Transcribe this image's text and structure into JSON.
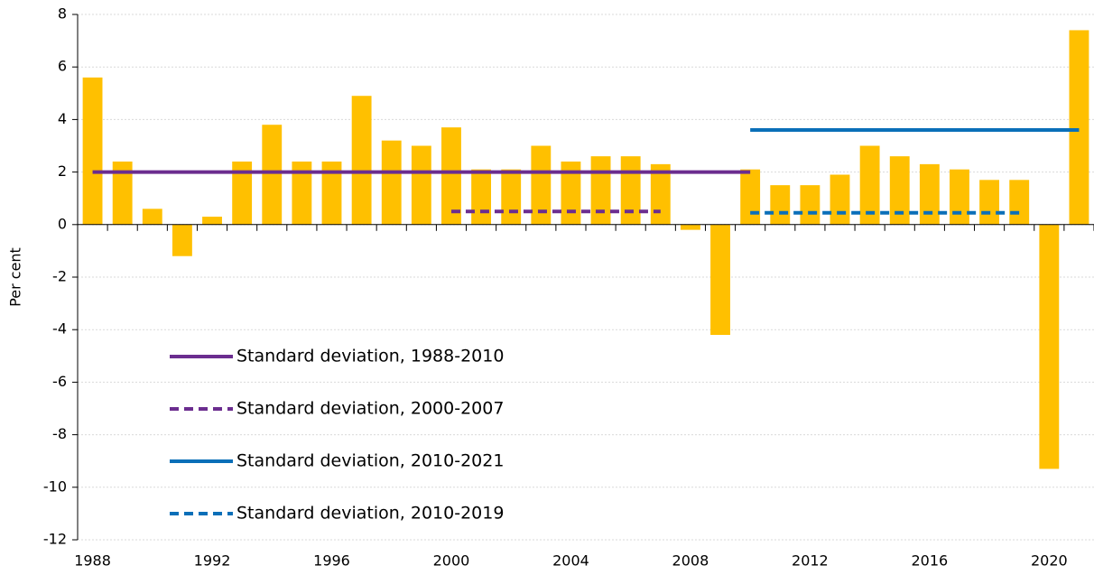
{
  "chart_data": {
    "type": "bar",
    "y_label": "Per cent",
    "categories": [
      "1988",
      null,
      null,
      null,
      "1992",
      null,
      null,
      null,
      "1996",
      null,
      null,
      null,
      "2000",
      null,
      null,
      null,
      "2004",
      null,
      null,
      null,
      "2008",
      null,
      null,
      null,
      "2012",
      null,
      null,
      null,
      "2016",
      null,
      null,
      null,
      "2020",
      null
    ],
    "values": [
      5.6,
      2.4,
      0.6,
      -1.2,
      0.3,
      2.4,
      3.8,
      2.4,
      2.4,
      4.9,
      3.2,
      3.0,
      3.7,
      2.1,
      2.1,
      3.0,
      2.4,
      2.6,
      2.6,
      2.3,
      -0.2,
      -4.2,
      2.1,
      1.5,
      1.5,
      1.9,
      3.0,
      2.6,
      2.3,
      2.1,
      1.7,
      1.7,
      -9.3,
      7.4
    ],
    "color": "#ffc000",
    "series": [
      {
        "name": "Standard deviation, 1988-2010",
        "color": "#6b2d8f",
        "dashed": false,
        "values": [
          2.0,
          2.0,
          2.0,
          2.0,
          2.0,
          2.0,
          2.0,
          2.0,
          2.0,
          2.0,
          2.0,
          2.0,
          2.0,
          2.0,
          2.0,
          2.0,
          2.0,
          2.0,
          2.0,
          2.0,
          2.0,
          2.0,
          2.0,
          null,
          null,
          null,
          null,
          null,
          null,
          null,
          null,
          null,
          null,
          null
        ]
      },
      {
        "name": "Standard deviation, 2000-2007",
        "color": "#6b2d8f",
        "dashed": true,
        "values": [
          null,
          null,
          null,
          null,
          null,
          null,
          null,
          null,
          null,
          null,
          null,
          null,
          0.5,
          0.5,
          0.5,
          0.5,
          0.5,
          0.5,
          0.5,
          0.5,
          null,
          null,
          null,
          null,
          null,
          null,
          null,
          null,
          null,
          null,
          null,
          null,
          null,
          null
        ]
      },
      {
        "name": "Standard deviation, 2010-2021",
        "color": "#0a6fb8",
        "dashed": false,
        "values": [
          null,
          null,
          null,
          null,
          null,
          null,
          null,
          null,
          null,
          null,
          null,
          null,
          null,
          null,
          null,
          null,
          null,
          null,
          null,
          null,
          null,
          null,
          3.6,
          3.6,
          3.6,
          3.6,
          3.6,
          3.6,
          3.6,
          3.6,
          3.6,
          3.6,
          3.6,
          3.6
        ]
      },
      {
        "name": "Standard deviation, 2010-2019",
        "color": "#0a6fb8",
        "dashed": true,
        "values": [
          null,
          null,
          null,
          null,
          null,
          null,
          null,
          null,
          null,
          null,
          null,
          null,
          null,
          null,
          null,
          null,
          null,
          null,
          null,
          null,
          null,
          null,
          0.45,
          0.45,
          0.45,
          0.45,
          0.45,
          0.45,
          0.45,
          0.45,
          0.45,
          0.45,
          null,
          null
        ]
      }
    ],
    "ylim": [
      -12,
      8
    ],
    "yticks": [
      -12,
      -10,
      -8,
      -6,
      -4,
      -2,
      0,
      2,
      4,
      6,
      8
    ],
    "grid": true,
    "legend": "lower left"
  }
}
